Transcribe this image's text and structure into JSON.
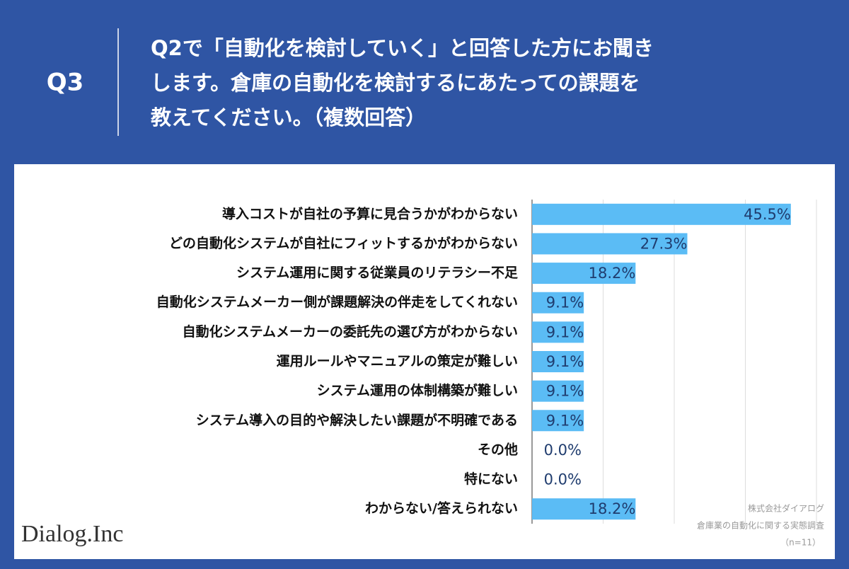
{
  "chart_data": {
    "type": "bar",
    "orientation": "horizontal",
    "question_label": "Q3",
    "title_lines": [
      "Q2で「自動化を検討していく」と回答した方にお聞き",
      "します。倉庫の自動化を検討するにあたっての課題を",
      "教えてください。（複数回答）"
    ],
    "categories": [
      "導入コストが自社の予算に見合うかがわからない",
      "どの自動化システムが自社にフィットするかがわからない",
      "システム運用に関する従業員のリテラシー不足",
      "自動化システムメーカー側が課題解決の伴走をしてくれない",
      "自動化システムメーカーの委託先の選び方がわからない",
      "運用ルールやマニュアルの策定が難しい",
      "システム運用の体制構築が難しい",
      "システム導入の目的や解決したい課題が不明確である",
      "その他",
      "特にない",
      "わからない/答えられない"
    ],
    "values": [
      45.5,
      27.3,
      18.2,
      9.1,
      9.1,
      9.1,
      9.1,
      9.1,
      0.0,
      0.0,
      18.2
    ],
    "value_labels": [
      "45.5%",
      "27.3%",
      "18.2%",
      "9.1%",
      "9.1%",
      "9.1%",
      "9.1%",
      "9.1%",
      "0.0%",
      "0.0%",
      "18.2%"
    ],
    "color": "#5bbcf5",
    "xlim": [
      0,
      50
    ],
    "xticks": [
      0,
      12.5,
      25,
      37.5,
      50
    ],
    "grid": true,
    "brand": "Dialog.Inc",
    "source_lines": [
      "株式会社ダイアログ",
      "倉庫業の自動化に関する実態調査",
      "（n=11）"
    ]
  }
}
